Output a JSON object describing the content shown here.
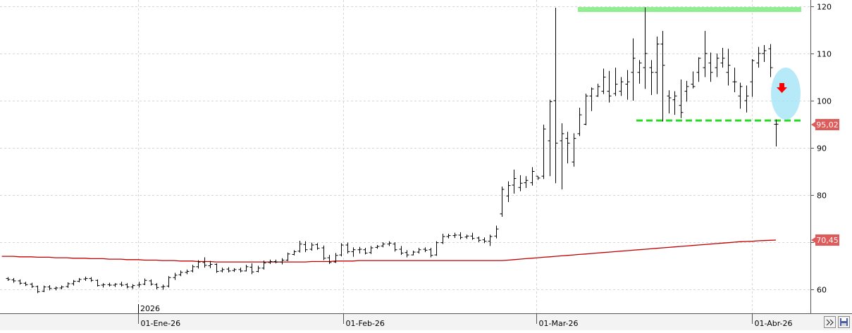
{
  "chart_data": {
    "type": "ohlc",
    "year_label": "2026",
    "x_tick_labels": [
      "01-Ene-26",
      "01-Feb-26",
      "01-Mar-26",
      "01-Abr-26"
    ],
    "y_ticks": [
      60,
      70,
      80,
      90,
      100,
      110,
      120
    ],
    "ylim": [
      55,
      121
    ],
    "grid": true,
    "last_price_label": "95,02",
    "last_price": 95.02,
    "ma_label": "70,45",
    "ma_value": 70.45,
    "colors": {
      "bars": "#000000",
      "moving_average": "#c00000",
      "resistance": "#90ee90",
      "support": "#22dd22",
      "price_badge": "#e05a5a",
      "highlight": "#9fe3f7",
      "arrow": "#ff0000"
    },
    "resistance_level": 119.4,
    "support_level": 95.8,
    "ohlc": [
      [
        62.3,
        62.6,
        61.8,
        62.1
      ],
      [
        62.0,
        62.4,
        61.4,
        61.8
      ],
      [
        61.8,
        62.1,
        61.0,
        61.3
      ],
      [
        61.3,
        61.6,
        60.7,
        61.0
      ],
      [
        61.1,
        61.4,
        60.3,
        60.6
      ],
      [
        60.6,
        60.8,
        59.2,
        59.5
      ],
      [
        59.6,
        60.8,
        59.4,
        60.5
      ],
      [
        60.5,
        60.9,
        59.8,
        60.2
      ],
      [
        60.2,
        60.6,
        59.8,
        60.3
      ],
      [
        60.3,
        60.8,
        60.0,
        60.5
      ],
      [
        60.6,
        61.5,
        60.3,
        61.2
      ],
      [
        61.2,
        62.0,
        60.8,
        61.7
      ],
      [
        61.7,
        62.4,
        61.5,
        62.1
      ],
      [
        62.2,
        62.7,
        61.8,
        62.3
      ],
      [
        62.3,
        62.6,
        61.6,
        61.9
      ],
      [
        61.9,
        62.1,
        60.6,
        60.8
      ],
      [
        60.9,
        61.3,
        60.4,
        61.0
      ],
      [
        61.0,
        61.4,
        60.6,
        60.9
      ],
      [
        60.9,
        61.3,
        60.5,
        61.1
      ],
      [
        61.1,
        61.6,
        60.6,
        60.9
      ],
      [
        61.0,
        61.3,
        60.2,
        60.5
      ],
      [
        60.5,
        61.1,
        60.1,
        60.8
      ],
      [
        60.9,
        61.6,
        60.4,
        61.0
      ],
      [
        61.1,
        62.3,
        60.9,
        61.9
      ],
      [
        61.8,
        62.1,
        60.8,
        61.1
      ],
      [
        61.0,
        61.3,
        60.0,
        60.4
      ],
      [
        60.5,
        61.0,
        59.9,
        60.6
      ],
      [
        60.7,
        62.8,
        60.4,
        62.5
      ],
      [
        62.5,
        63.5,
        62.0,
        63.0
      ],
      [
        63.1,
        64.0,
        62.8,
        63.6
      ],
      [
        63.6,
        64.2,
        63.2,
        63.8
      ],
      [
        63.9,
        65.2,
        63.6,
        64.8
      ],
      [
        64.8,
        66.2,
        64.4,
        65.8
      ],
      [
        65.7,
        66.8,
        64.6,
        65.1
      ],
      [
        65.0,
        66.0,
        64.5,
        65.3
      ],
      [
        65.3,
        65.5,
        63.5,
        63.8
      ],
      [
        63.9,
        64.6,
        63.6,
        64.2
      ],
      [
        64.3,
        64.7,
        63.6,
        63.9
      ],
      [
        64.0,
        64.5,
        63.7,
        64.2
      ],
      [
        64.2,
        64.6,
        63.6,
        63.9
      ],
      [
        63.9,
        65.2,
        63.8,
        64.8
      ],
      [
        64.7,
        65.5,
        63.2,
        63.7
      ],
      [
        63.8,
        65.0,
        63.6,
        64.5
      ],
      [
        64.5,
        66.1,
        64.2,
        65.6
      ],
      [
        65.7,
        66.3,
        65.4,
        65.9
      ],
      [
        65.9,
        66.3,
        65.5,
        65.8
      ],
      [
        65.8,
        66.6,
        65.3,
        66.2
      ],
      [
        66.2,
        67.8,
        66.0,
        67.5
      ],
      [
        67.4,
        68.3,
        67.2,
        68.0
      ],
      [
        68.1,
        70.3,
        67.8,
        69.6
      ],
      [
        69.5,
        70.2,
        67.9,
        68.4
      ],
      [
        68.5,
        69.9,
        68.2,
        69.4
      ],
      [
        69.5,
        69.8,
        68.4,
        68.7
      ],
      [
        68.8,
        69.3,
        66.2,
        66.6
      ],
      [
        66.7,
        67.3,
        65.4,
        65.7
      ],
      [
        65.8,
        67.7,
        65.6,
        67.2
      ],
      [
        67.3,
        69.8,
        67.0,
        69.4
      ],
      [
        69.4,
        69.9,
        67.6,
        68.0
      ],
      [
        68.0,
        68.9,
        66.9,
        68.4
      ],
      [
        68.4,
        69.0,
        67.6,
        68.5
      ],
      [
        68.4,
        68.8,
        67.4,
        67.7
      ],
      [
        67.8,
        69.2,
        67.5,
        68.8
      ],
      [
        68.9,
        69.4,
        68.6,
        69.1
      ],
      [
        69.2,
        70.0,
        68.9,
        69.6
      ],
      [
        69.6,
        70.2,
        69.2,
        69.8
      ],
      [
        69.6,
        70.0,
        68.0,
        68.4
      ],
      [
        68.5,
        69.2,
        67.3,
        67.7
      ],
      [
        67.8,
        68.3,
        66.8,
        67.3
      ],
      [
        67.3,
        68.2,
        67.2,
        67.9
      ],
      [
        67.9,
        68.8,
        67.6,
        68.4
      ],
      [
        68.5,
        68.9,
        67.9,
        68.3
      ],
      [
        68.4,
        68.8,
        66.8,
        67.2
      ],
      [
        67.3,
        70.2,
        67.1,
        69.9
      ],
      [
        69.9,
        71.8,
        69.6,
        71.2
      ],
      [
        71.2,
        71.8,
        70.8,
        71.4
      ],
      [
        71.4,
        72.0,
        70.9,
        71.5
      ],
      [
        71.5,
        72.1,
        70.6,
        71.0
      ],
      [
        71.1,
        71.6,
        70.7,
        71.3
      ],
      [
        71.3,
        72.0,
        70.5,
        70.8
      ],
      [
        70.9,
        71.2,
        70.0,
        70.4
      ],
      [
        70.5,
        71.0,
        69.8,
        70.2
      ],
      [
        70.2,
        71.6,
        69.2,
        71.2
      ],
      [
        71.3,
        73.5,
        70.8,
        72.8
      ],
      [
        76.0,
        81.8,
        75.4,
        81.2
      ],
      [
        79.8,
        82.9,
        78.5,
        82.0
      ],
      [
        82.1,
        85.4,
        80.3,
        83.5
      ],
      [
        81.6,
        84.2,
        80.8,
        82.5
      ],
      [
        82.6,
        84.0,
        81.5,
        83.1
      ],
      [
        82.6,
        85.9,
        82.0,
        85.0
      ],
      [
        84.0,
        84.0,
        83.2,
        83.6
      ],
      [
        84.0,
        94.9,
        83.4,
        94.0
      ],
      [
        91.5,
        100.2,
        84.0,
        99.8
      ],
      [
        100.0,
        119.7,
        82.5,
        91.0
      ],
      [
        91.5,
        95.2,
        81.2,
        93.0
      ],
      [
        92.0,
        93.4,
        86.7,
        91.0
      ],
      [
        87.0,
        93.1,
        86.0,
        92.0
      ],
      [
        93.0,
        98.5,
        92.5,
        97.0
      ],
      [
        95.0,
        101.5,
        94.8,
        101.0
      ],
      [
        101.0,
        102.8,
        97.8,
        102.5
      ],
      [
        101.0,
        103.6,
        100.8,
        103.0
      ],
      [
        102.0,
        106.8,
        101.4,
        105.0
      ],
      [
        102.0,
        106.3,
        99.6,
        101.0
      ],
      [
        101.5,
        107.0,
        101.0,
        103.5
      ],
      [
        102.0,
        105.0,
        101.0,
        104.0
      ],
      [
        103.5,
        106.5,
        100.2,
        104.0
      ],
      [
        106.0,
        113.2,
        100.0,
        109.0
      ],
      [
        106.0,
        108.6,
        103.6,
        108.0
      ],
      [
        107.0,
        119.8,
        102.5,
        110.0
      ],
      [
        107.0,
        108.6,
        101.2,
        106.0
      ],
      [
        106.0,
        113.6,
        101.4,
        112.0
      ],
      [
        112.0,
        114.8,
        95.6,
        107.5
      ],
      [
        101.0,
        102.2,
        97.3,
        100.6
      ],
      [
        100.2,
        102.0,
        97.0,
        101.0
      ],
      [
        99.0,
        104.5,
        96.3,
        97.5
      ],
      [
        102.0,
        104.2,
        99.8,
        103.0
      ],
      [
        103.5,
        106.2,
        102.6,
        103.0
      ],
      [
        106.0,
        109.2,
        104.0,
        109.0
      ],
      [
        107.0,
        114.8,
        105.0,
        110.0
      ],
      [
        108.0,
        110.2,
        104.0,
        106.0
      ],
      [
        107.0,
        110.0,
        105.0,
        109.0
      ],
      [
        108.0,
        111.2,
        107.0,
        109.0
      ],
      [
        106.0,
        111.0,
        103.2,
        107.5
      ],
      [
        104.0,
        107.0,
        101.8,
        104.0
      ],
      [
        101.0,
        103.8,
        98.3,
        103.0
      ],
      [
        100.0,
        103.2,
        97.5,
        101.0
      ],
      [
        104.0,
        108.8,
        100.8,
        108.5
      ],
      [
        108.0,
        111.4,
        107.0,
        110.0
      ],
      [
        110.0,
        111.8,
        108.2,
        110.6
      ],
      [
        111.0,
        112.0,
        105.0,
        107.0
      ],
      [
        95.0,
        96.0,
        90.3,
        95.02
      ]
    ],
    "ma": [
      67.0,
      67.0,
      67.0,
      66.9,
      66.9,
      66.9,
      66.8,
      66.8,
      66.8,
      66.7,
      66.7,
      66.7,
      66.6,
      66.6,
      66.6,
      66.5,
      66.5,
      66.5,
      66.4,
      66.4,
      66.4,
      66.3,
      66.3,
      66.3,
      66.2,
      66.2,
      66.2,
      66.1,
      66.1,
      66.1,
      66.0,
      66.0,
      66.0,
      65.9,
      65.9,
      65.9,
      65.8,
      65.8,
      65.8,
      65.8,
      65.8,
      65.8,
      65.8,
      65.8,
      65.8,
      65.8,
      65.8,
      65.8,
      65.8,
      65.8,
      65.8,
      65.8,
      65.9,
      65.9,
      65.9,
      65.9,
      66.0,
      66.0,
      66.0,
      66.0,
      66.1,
      66.1,
      66.1,
      66.1,
      66.1,
      66.1,
      66.1,
      66.1,
      66.1,
      66.1,
      66.1,
      66.1,
      66.1,
      66.1,
      66.1,
      66.1,
      66.1,
      66.1,
      66.1,
      66.1,
      66.1,
      66.1,
      66.1,
      66.1,
      66.1,
      66.2,
      66.3,
      66.4,
      66.5,
      66.6,
      66.7,
      66.8,
      66.9,
      67.0,
      67.1,
      67.2,
      67.3,
      67.4,
      67.5,
      67.6,
      67.7,
      67.8,
      67.9,
      68.0,
      68.1,
      68.2,
      68.3,
      68.4,
      68.5,
      68.6,
      68.7,
      68.8,
      68.9,
      69.0,
      69.1,
      69.2,
      69.3,
      69.4,
      69.5,
      69.6,
      69.7,
      69.8,
      69.9,
      70.0,
      70.1,
      70.15,
      70.2,
      70.3,
      70.35,
      70.4,
      70.45
    ]
  }
}
